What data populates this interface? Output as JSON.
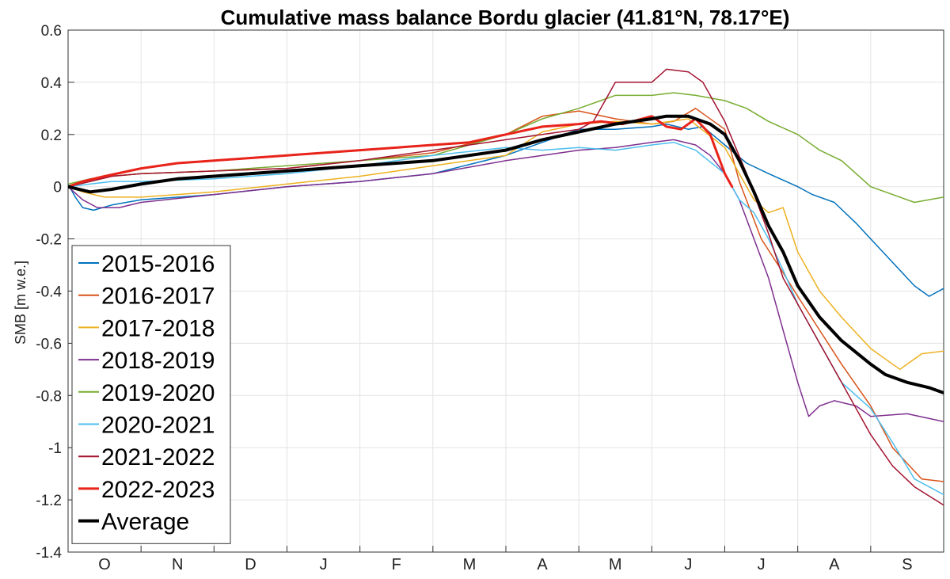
{
  "chart_data": {
    "type": "line",
    "title": "Cumulative mass balance Bordu glacier (41.81°N, 78.17°E)",
    "ylabel": "SMB [m w.e.]",
    "xlabel": "",
    "x_unit": "month of hydrological year (Oct–Sep)",
    "xlim": [
      0,
      12
    ],
    "ylim": [
      -1.4,
      0.6
    ],
    "yticks": [
      0.6,
      0.4,
      0.2,
      0,
      -0.2,
      -0.4,
      -0.6,
      -0.8,
      -1,
      -1.2,
      -1.4
    ],
    "ytick_labels": [
      "0.6",
      "0.4",
      "0.2",
      "0",
      "-0.2",
      "-0.4",
      "-0.6",
      "-0.8",
      "-1",
      "-1.2",
      "-1.4"
    ],
    "month_labels": [
      "O",
      "N",
      "D",
      "J",
      "F",
      "M",
      "A",
      "M",
      "J",
      "J",
      "A",
      "S"
    ],
    "grid": true,
    "legend_position": "bottom-left",
    "series": [
      {
        "name": "2015-2016",
        "color": "#0072BD",
        "width": 1.5,
        "x": [
          0,
          0.1,
          0.2,
          0.35,
          0.6,
          1,
          2,
          3,
          4,
          5,
          6,
          7,
          7.5,
          8,
          8.2,
          8.5,
          8.7,
          9,
          9.3,
          9.6,
          10,
          10.2,
          10.5,
          10.8,
          11,
          11.3,
          11.6,
          11.8,
          12
        ],
        "y": [
          0.01,
          -0.04,
          -0.08,
          -0.09,
          -0.07,
          -0.05,
          -0.03,
          0,
          0.02,
          0.05,
          0.12,
          0.22,
          0.22,
          0.23,
          0.24,
          0.22,
          0.23,
          0.16,
          0.09,
          0.05,
          0,
          -0.03,
          -0.06,
          -0.14,
          -0.2,
          -0.29,
          -0.38,
          -0.42,
          -0.39
        ]
      },
      {
        "name": "2016-2017",
        "color": "#D95319",
        "width": 1.5,
        "x": [
          0,
          0.3,
          0.6,
          1,
          2,
          3,
          4,
          5,
          6,
          6.5,
          7,
          7.5,
          8,
          8.3,
          8.6,
          9,
          9.2,
          9.5,
          9.8,
          10,
          10.3,
          10.6,
          11,
          11.3,
          11.7,
          12
        ],
        "y": [
          0,
          0.02,
          0.04,
          0.05,
          0.06,
          0.07,
          0.1,
          0.13,
          0.2,
          0.27,
          0.29,
          0.26,
          0.24,
          0.25,
          0.3,
          0.22,
          0.02,
          -0.2,
          -0.33,
          -0.42,
          -0.55,
          -0.68,
          -0.84,
          -1.0,
          -1.12,
          -1.13
        ]
      },
      {
        "name": "2017-2018",
        "color": "#EDB120",
        "width": 1.5,
        "x": [
          0,
          0.2,
          0.5,
          1,
          2,
          3,
          4,
          5,
          6,
          6.5,
          7,
          7.5,
          8,
          8.5,
          9,
          9.2,
          9.4,
          9.6,
          9.8,
          10,
          10.3,
          10.6,
          11,
          11.2,
          11.4,
          11.7,
          12
        ],
        "y": [
          0,
          -0.02,
          -0.04,
          -0.04,
          -0.02,
          0.01,
          0.04,
          0.08,
          0.12,
          0.21,
          0.24,
          0.25,
          0.24,
          0.26,
          0.15,
          0.05,
          -0.05,
          -0.1,
          -0.08,
          -0.25,
          -0.4,
          -0.5,
          -0.62,
          -0.66,
          -0.7,
          -0.64,
          -0.63
        ]
      },
      {
        "name": "2018-2019",
        "color": "#7E2F8E",
        "width": 1.5,
        "x": [
          0,
          0.2,
          0.4,
          0.7,
          1,
          2,
          3,
          4,
          5,
          6,
          6.5,
          7,
          7.5,
          8,
          8.3,
          8.6,
          8.8,
          9,
          9.2,
          9.4,
          9.6,
          9.8,
          10,
          10.15,
          10.3,
          10.5,
          10.8,
          11,
          11.5,
          12
        ],
        "y": [
          0,
          -0.05,
          -0.08,
          -0.08,
          -0.06,
          -0.03,
          0,
          0.02,
          0.05,
          0.1,
          0.12,
          0.14,
          0.15,
          0.17,
          0.18,
          0.16,
          0.12,
          0.05,
          -0.05,
          -0.2,
          -0.35,
          -0.55,
          -0.75,
          -0.88,
          -0.84,
          -0.82,
          -0.84,
          -0.88,
          -0.87,
          -0.9
        ]
      },
      {
        "name": "2019-2020",
        "color": "#77AC30",
        "width": 1.5,
        "x": [
          0,
          0.3,
          0.6,
          1,
          2,
          3,
          4,
          5,
          6,
          6.5,
          7,
          7.3,
          7.5,
          8,
          8.3,
          8.6,
          9,
          9.3,
          9.6,
          10,
          10.3,
          10.6,
          10.8,
          11,
          11.3,
          11.6,
          12
        ],
        "y": [
          0.01,
          0.03,
          0.04,
          0.05,
          0.06,
          0.08,
          0.1,
          0.12,
          0.2,
          0.26,
          0.3,
          0.33,
          0.35,
          0.35,
          0.36,
          0.35,
          0.33,
          0.3,
          0.25,
          0.2,
          0.14,
          0.1,
          0.05,
          0,
          -0.03,
          -0.06,
          -0.04
        ]
      },
      {
        "name": "2020-2021",
        "color": "#4DBEEE",
        "width": 1.5,
        "x": [
          0,
          0.3,
          0.6,
          1,
          2,
          3,
          4,
          5,
          6,
          6.5,
          7,
          7.5,
          8,
          8.3,
          8.6,
          9,
          9.2,
          9.4,
          9.6,
          9.8,
          10,
          10.3,
          10.6,
          11,
          11.3,
          11.6,
          12
        ],
        "y": [
          0,
          0.01,
          0.02,
          0.02,
          0.03,
          0.05,
          0.08,
          0.12,
          0.15,
          0.14,
          0.15,
          0.14,
          0.16,
          0.17,
          0.14,
          0.05,
          -0.05,
          -0.1,
          -0.2,
          -0.32,
          -0.45,
          -0.6,
          -0.75,
          -0.85,
          -0.98,
          -1.12,
          -1.18
        ]
      },
      {
        "name": "2021-2022",
        "color": "#A2142F",
        "width": 1.5,
        "x": [
          0,
          0.3,
          0.6,
          1,
          2,
          3,
          4,
          5,
          6,
          6.5,
          7,
          7.2,
          7.5,
          7.8,
          8,
          8.2,
          8.5,
          8.7,
          9,
          9.3,
          9.6,
          9.8,
          10,
          10.3,
          10.6,
          11,
          11.3,
          11.6,
          12
        ],
        "y": [
          0,
          0.02,
          0.04,
          0.05,
          0.06,
          0.07,
          0.1,
          0.14,
          0.18,
          0.2,
          0.22,
          0.25,
          0.4,
          0.4,
          0.4,
          0.45,
          0.44,
          0.4,
          0.25,
          0.05,
          -0.18,
          -0.35,
          -0.45,
          -0.6,
          -0.75,
          -0.95,
          -1.07,
          -1.15,
          -1.22
        ]
      },
      {
        "name": "2022-2023",
        "color": "#E8231A",
        "width": 3,
        "x": [
          0,
          0.2,
          0.5,
          1,
          1.5,
          2,
          3,
          4,
          5,
          5.5,
          6,
          6.5,
          7,
          7.3,
          7.6,
          8,
          8.2,
          8.4,
          8.6,
          8.8,
          9,
          9.1
        ],
        "y": [
          0,
          0.02,
          0.04,
          0.07,
          0.09,
          0.1,
          0.12,
          0.14,
          0.16,
          0.17,
          0.2,
          0.23,
          0.24,
          0.25,
          0.24,
          0.27,
          0.23,
          0.22,
          0.26,
          0.2,
          0.05,
          0.0
        ]
      },
      {
        "name": "Average",
        "color": "#000000",
        "width": 4,
        "x": [
          0,
          0.3,
          0.6,
          1,
          1.5,
          2,
          3,
          4,
          5,
          6,
          6.5,
          7,
          7.5,
          8,
          8.2,
          8.5,
          8.8,
          9,
          9.2,
          9.4,
          9.6,
          9.8,
          10,
          10.3,
          10.6,
          11,
          11.2,
          11.5,
          11.8,
          12
        ],
        "y": [
          0,
          -0.02,
          -0.01,
          0.01,
          0.03,
          0.04,
          0.06,
          0.08,
          0.1,
          0.14,
          0.18,
          0.21,
          0.24,
          0.26,
          0.27,
          0.27,
          0.24,
          0.2,
          0.1,
          -0.02,
          -0.15,
          -0.25,
          -0.38,
          -0.5,
          -0.59,
          -0.68,
          -0.72,
          -0.75,
          -0.77,
          -0.79
        ]
      }
    ]
  }
}
